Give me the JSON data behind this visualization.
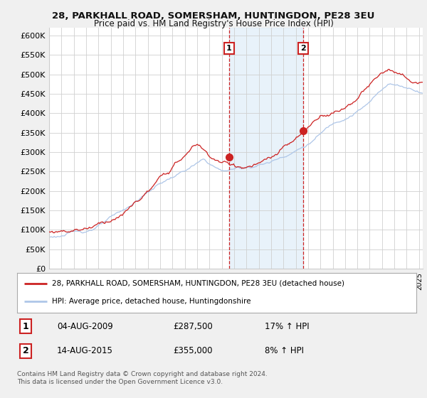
{
  "title1": "28, PARKHALL ROAD, SOMERSHAM, HUNTINGDON, PE28 3EU",
  "title2": "Price paid vs. HM Land Registry's House Price Index (HPI)",
  "ylim": [
    0,
    620000
  ],
  "yticks": [
    0,
    50000,
    100000,
    150000,
    200000,
    250000,
    300000,
    350000,
    400000,
    450000,
    500000,
    550000,
    600000
  ],
  "ytick_labels": [
    "£0",
    "£50K",
    "£100K",
    "£150K",
    "£200K",
    "£250K",
    "£300K",
    "£350K",
    "£400K",
    "£450K",
    "£500K",
    "£550K",
    "£600K"
  ],
  "hpi_color": "#aec6e8",
  "price_color": "#cc2222",
  "marker1_x": 2009.6,
  "marker1_y": 287500,
  "marker2_x": 2015.6,
  "marker2_y": 355000,
  "legend_line1": "28, PARKHALL ROAD, SOMERSHAM, HUNTINGDON, PE28 3EU (detached house)",
  "legend_line2": "HPI: Average price, detached house, Huntingdonshire",
  "table_row1_num": "1",
  "table_row1_date": "04-AUG-2009",
  "table_row1_price": "£287,500",
  "table_row1_hpi": "17% ↑ HPI",
  "table_row2_num": "2",
  "table_row2_date": "14-AUG-2015",
  "table_row2_price": "£355,000",
  "table_row2_hpi": "8% ↑ HPI",
  "footer": "Contains HM Land Registry data © Crown copyright and database right 2024.\nThis data is licensed under the Open Government Licence v3.0.",
  "bg_color": "#f0f0f0",
  "plot_bg": "#ffffff",
  "shade_color": "#daeaf7",
  "xlim_left": 1995.0,
  "xlim_right": 2025.3
}
